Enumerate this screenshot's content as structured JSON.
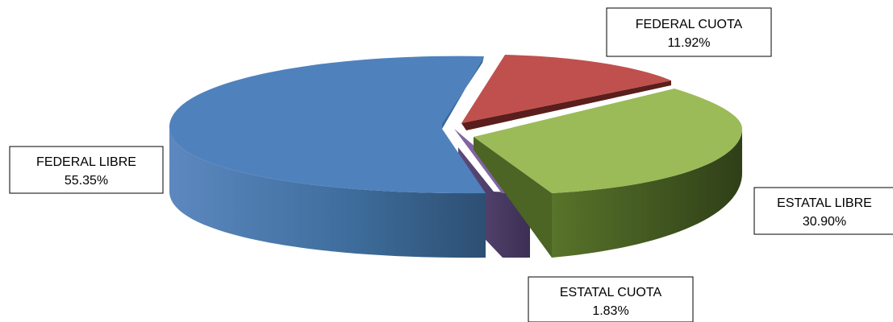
{
  "chart_data": {
    "type": "pie",
    "title": "",
    "slices": [
      {
        "label": "FEDERAL LIBRE",
        "value": 55.35,
        "value_label": "55.35%",
        "color": "#4F81BD"
      },
      {
        "label": "FEDERAL CUOTA",
        "value": 11.92,
        "value_label": "11.92%",
        "color": "#C0504D"
      },
      {
        "label": "ESTATAL LIBRE",
        "value": 30.9,
        "value_label": "30.90%",
        "color": "#9BBB59"
      },
      {
        "label": "ESTATAL CUOTA",
        "value": 1.83,
        "value_label": "1.83%",
        "color": "#8064A2"
      }
    ],
    "style": "3d-exploded",
    "legend": "none"
  }
}
